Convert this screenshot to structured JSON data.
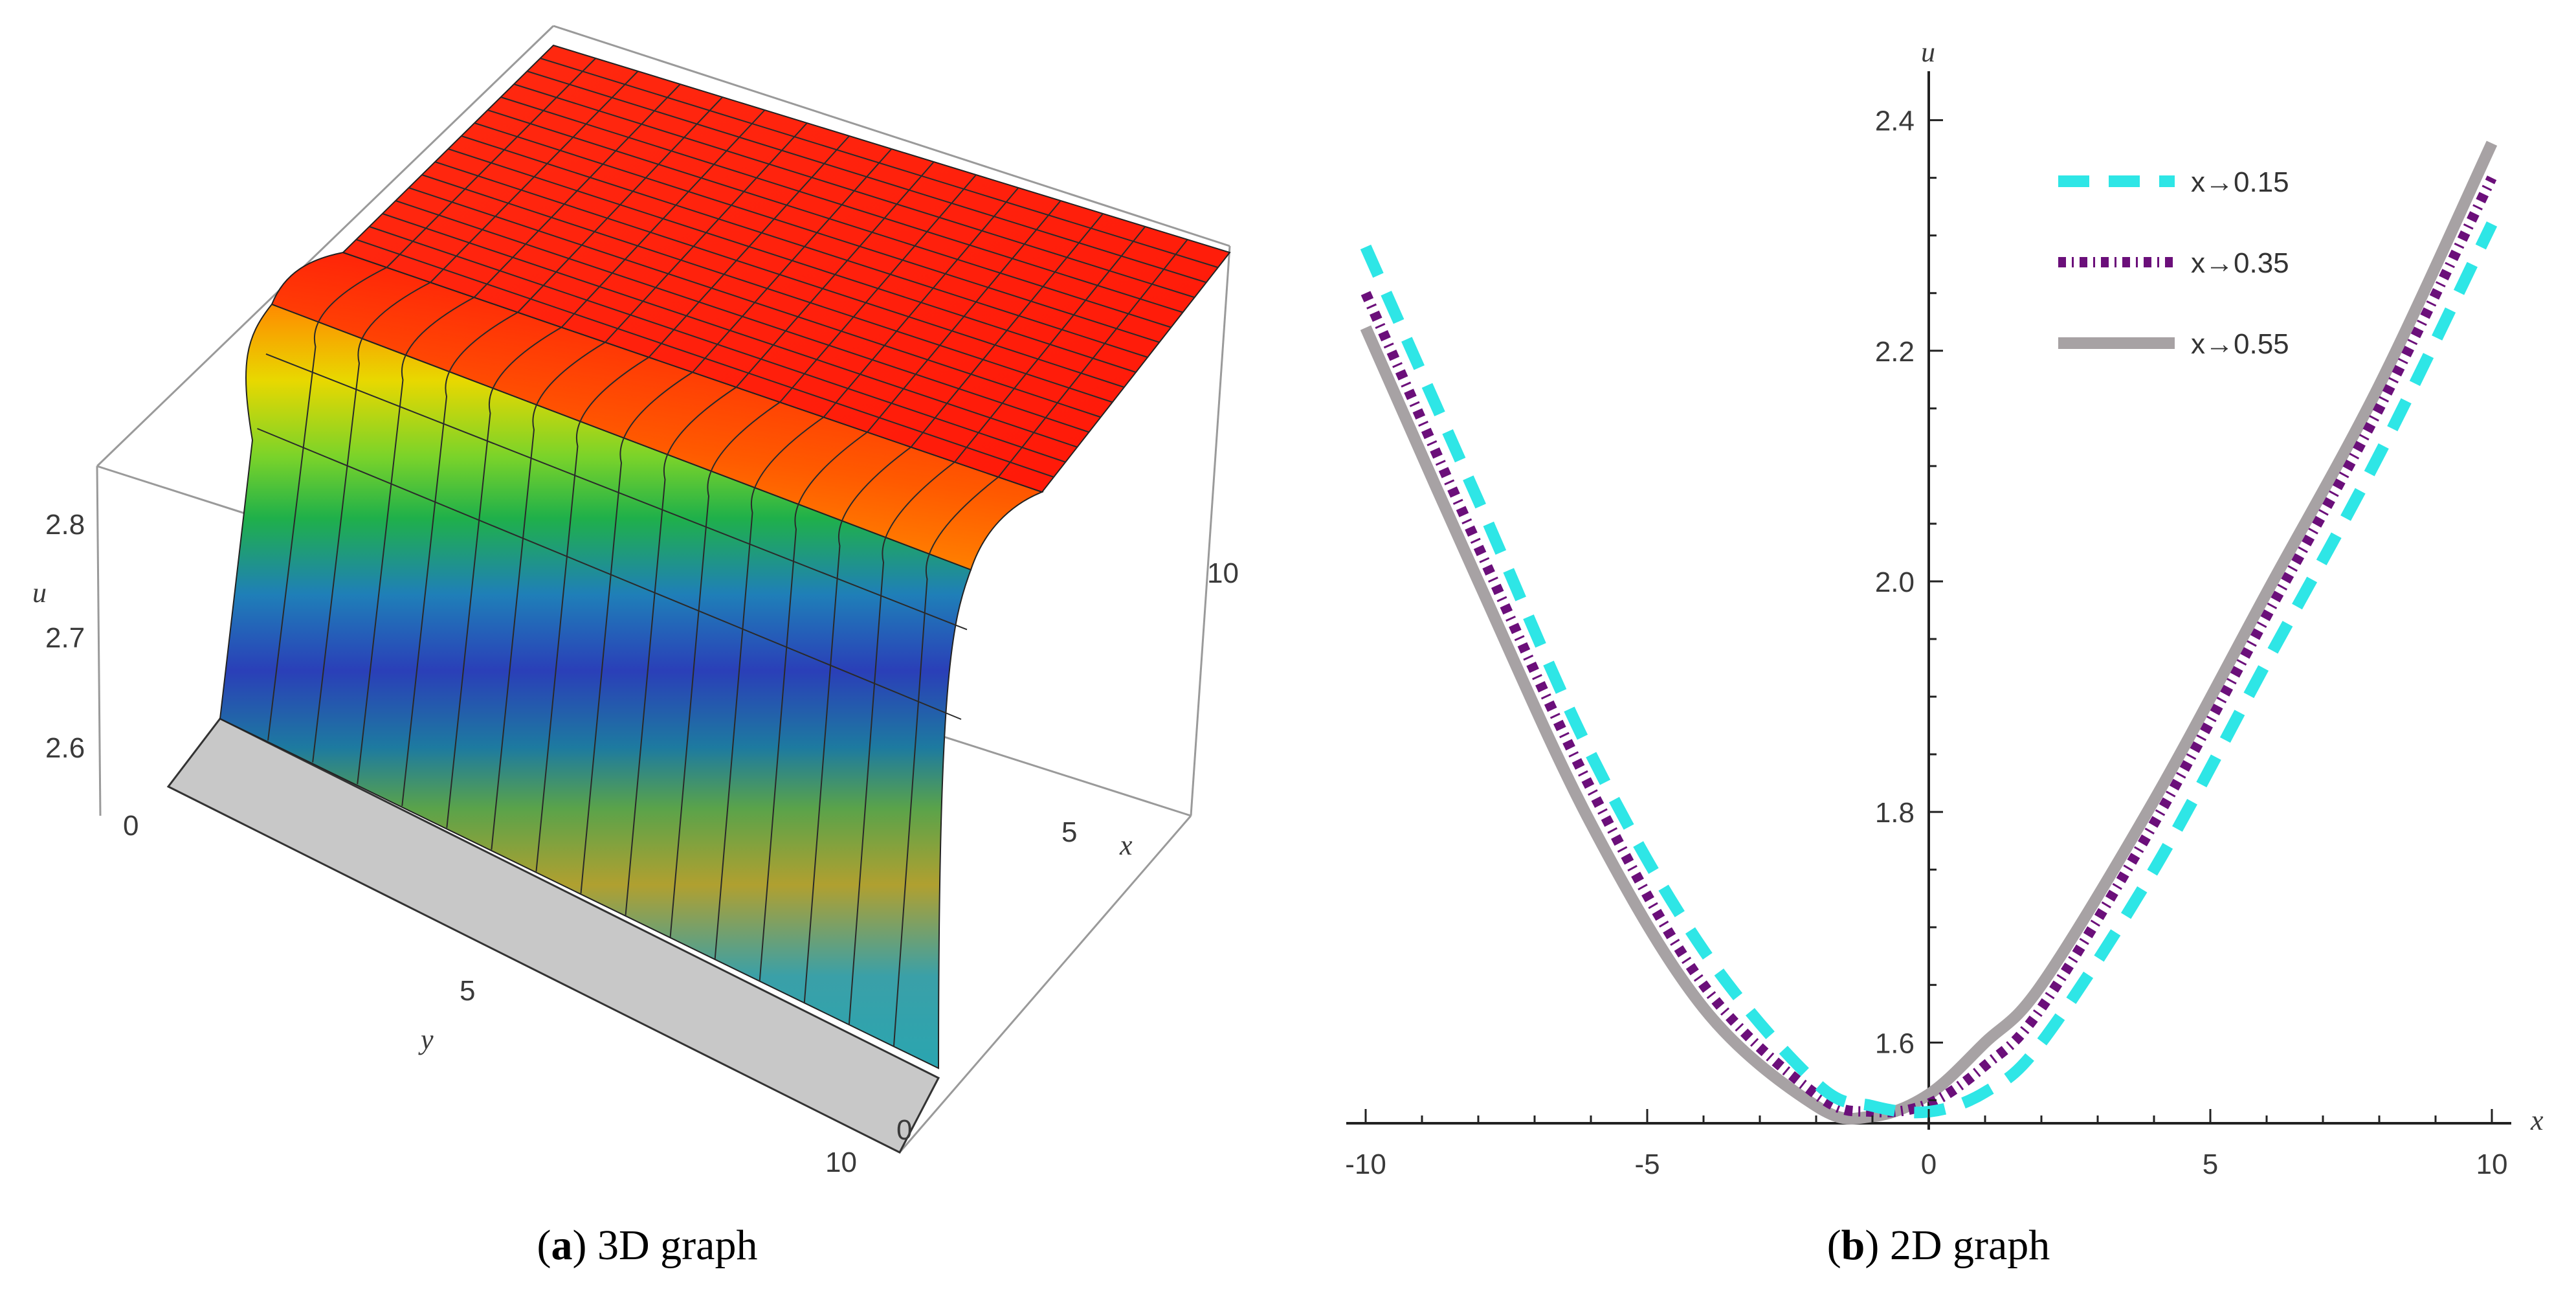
{
  "chart_data": [
    {
      "type": "surface",
      "caption_label": "a",
      "caption_text": "3D graph",
      "axes": {
        "x": {
          "label": "x",
          "range": [
            0,
            10
          ],
          "ticks": [
            "0",
            "5",
            "10"
          ]
        },
        "y": {
          "label": "y",
          "range": [
            0,
            10
          ],
          "ticks": [
            "0",
            "5",
            "10"
          ]
        },
        "z": {
          "label": "u",
          "ticks": [
            "2.6",
            "2.7",
            "2.8"
          ]
        }
      },
      "colors": {
        "top": "#ff1a0a",
        "base": "#c8c8c8"
      }
    },
    {
      "type": "line",
      "caption_label": "b",
      "caption_text": "2D graph",
      "xlabel": "x",
      "ylabel": "u",
      "xlim": [
        -10,
        10
      ],
      "ylim": [
        1.53,
        2.42
      ],
      "xticks": [
        -10,
        -5,
        0,
        5,
        10
      ],
      "yticks": [
        1.6,
        1.8,
        2.0,
        2.2,
        2.4
      ],
      "xtick_labels": [
        "-10",
        "-5",
        "0",
        "5",
        "10"
      ],
      "ytick_labels": [
        "1.6",
        "1.8",
        "2.0",
        "2.2",
        "2.4"
      ],
      "legend": "top-right",
      "series": [
        {
          "name": "x→0.15",
          "color": "#2ee6e6",
          "dash": "dashed",
          "x": [
            -10,
            -8,
            -6,
            -4,
            -2,
            -1,
            0,
            1,
            2,
            4,
            6,
            8,
            10
          ],
          "y": [
            2.29,
            2.07,
            1.85,
            1.68,
            1.565,
            1.545,
            1.54,
            1.557,
            1.6,
            1.75,
            1.93,
            2.11,
            2.31
          ]
        },
        {
          "name": "x→0.35",
          "color": "#6b0f7a",
          "dash": "dashdot",
          "x": [
            -10,
            -8,
            -6,
            -4,
            -2,
            -1,
            0,
            1,
            2,
            4,
            6,
            8,
            10
          ],
          "y": [
            2.25,
            2.03,
            1.82,
            1.65,
            1.555,
            1.54,
            1.547,
            1.58,
            1.63,
            1.79,
            1.97,
            2.15,
            2.35
          ]
        },
        {
          "name": "x→0.55",
          "color": "#a7a2a4",
          "dash": "solid",
          "x": [
            -10,
            -8,
            -6,
            -4,
            -2,
            -1,
            0,
            1,
            2,
            4,
            6,
            8,
            10
          ],
          "y": [
            2.22,
            2.0,
            1.79,
            1.63,
            1.545,
            1.536,
            1.555,
            1.6,
            1.65,
            1.81,
            1.99,
            2.17,
            2.38
          ]
        }
      ]
    }
  ]
}
